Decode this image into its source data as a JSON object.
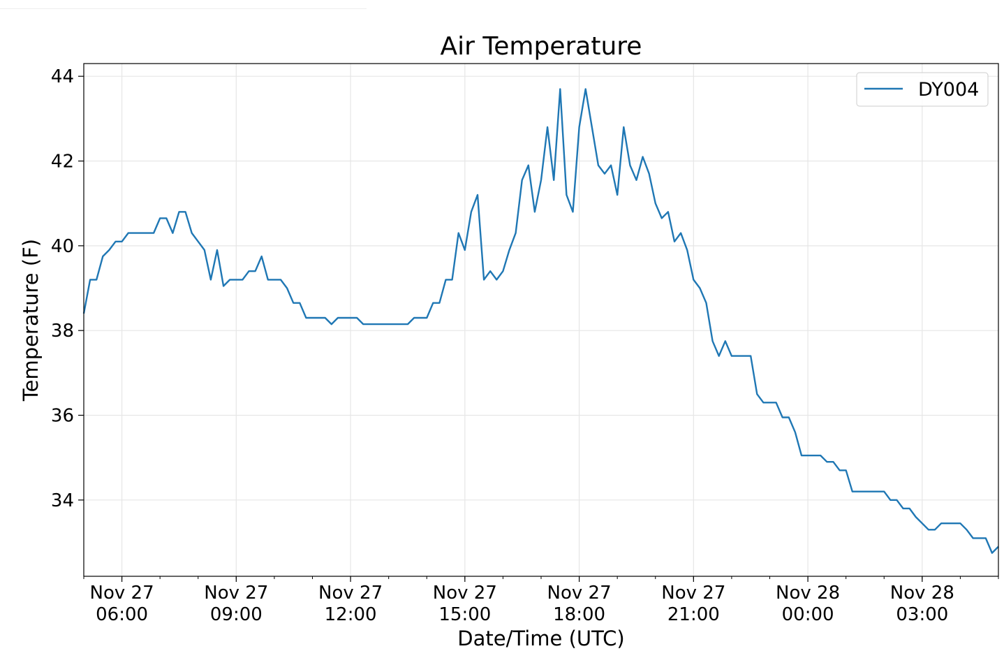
{
  "chart_data": {
    "type": "line",
    "title": "Air Temperature",
    "xlabel": "Date/Time (UTC)",
    "ylabel": "Temperature (F)",
    "ylim": [
      32.2,
      44.3
    ],
    "xlim": [
      "2019-11-27T05:00",
      "2019-11-28T05:00"
    ],
    "yticks": [
      34,
      36,
      38,
      40,
      42,
      44
    ],
    "xticks": [
      {
        "t": "2019-11-27T06:00",
        "line1": "Nov 27",
        "line2": "06:00"
      },
      {
        "t": "2019-11-27T09:00",
        "line1": "Nov 27",
        "line2": "09:00"
      },
      {
        "t": "2019-11-27T12:00",
        "line1": "Nov 27",
        "line2": "12:00"
      },
      {
        "t": "2019-11-27T15:00",
        "line1": "Nov 27",
        "line2": "15:00"
      },
      {
        "t": "2019-11-27T18:00",
        "line1": "Nov 27",
        "line2": "18:00"
      },
      {
        "t": "2019-11-27T21:00",
        "line1": "Nov 27",
        "line2": "21:00"
      },
      {
        "t": "2019-11-28T00:00",
        "line1": "Nov 28",
        "line2": "00:00"
      },
      {
        "t": "2019-11-28T03:00",
        "line1": "Nov 28",
        "line2": "03:00"
      }
    ],
    "grid": true,
    "legend_position": "top-right",
    "series": [
      {
        "name": "DY004",
        "color": "#1f77b4",
        "x": [
          "2019-11-27T05:00",
          "2019-11-27T05:10",
          "2019-11-27T05:20",
          "2019-11-27T05:30",
          "2019-11-27T05:40",
          "2019-11-27T05:50",
          "2019-11-27T06:00",
          "2019-11-27T06:10",
          "2019-11-27T06:20",
          "2019-11-27T06:30",
          "2019-11-27T06:40",
          "2019-11-27T06:50",
          "2019-11-27T07:00",
          "2019-11-27T07:10",
          "2019-11-27T07:20",
          "2019-11-27T07:30",
          "2019-11-27T07:40",
          "2019-11-27T07:50",
          "2019-11-27T08:00",
          "2019-11-27T08:10",
          "2019-11-27T08:20",
          "2019-11-27T08:30",
          "2019-11-27T08:40",
          "2019-11-27T08:50",
          "2019-11-27T09:00",
          "2019-11-27T09:10",
          "2019-11-27T09:20",
          "2019-11-27T09:30",
          "2019-11-27T09:40",
          "2019-11-27T09:50",
          "2019-11-27T10:00",
          "2019-11-27T10:10",
          "2019-11-27T10:20",
          "2019-11-27T10:30",
          "2019-11-27T10:40",
          "2019-11-27T10:50",
          "2019-11-27T11:00",
          "2019-11-27T11:10",
          "2019-11-27T11:20",
          "2019-11-27T11:30",
          "2019-11-27T11:40",
          "2019-11-27T11:50",
          "2019-11-27T12:00",
          "2019-11-27T12:10",
          "2019-11-27T12:20",
          "2019-11-27T12:30",
          "2019-11-27T12:40",
          "2019-11-27T12:50",
          "2019-11-27T13:00",
          "2019-11-27T13:10",
          "2019-11-27T13:20",
          "2019-11-27T13:30",
          "2019-11-27T13:40",
          "2019-11-27T13:50",
          "2019-11-27T14:00",
          "2019-11-27T14:10",
          "2019-11-27T14:20",
          "2019-11-27T14:30",
          "2019-11-27T14:40",
          "2019-11-27T14:50",
          "2019-11-27T15:00",
          "2019-11-27T15:10",
          "2019-11-27T15:20",
          "2019-11-27T15:30",
          "2019-11-27T15:40",
          "2019-11-27T15:50",
          "2019-11-27T16:00",
          "2019-11-27T16:10",
          "2019-11-27T16:20",
          "2019-11-27T16:30",
          "2019-11-27T16:40",
          "2019-11-27T16:50",
          "2019-11-27T17:00",
          "2019-11-27T17:10",
          "2019-11-27T17:20",
          "2019-11-27T17:30",
          "2019-11-27T17:40",
          "2019-11-27T17:50",
          "2019-11-27T18:00",
          "2019-11-27T18:10",
          "2019-11-27T18:20",
          "2019-11-27T18:30",
          "2019-11-27T18:40",
          "2019-11-27T18:50",
          "2019-11-27T19:00",
          "2019-11-27T19:10",
          "2019-11-27T19:20",
          "2019-11-27T19:30",
          "2019-11-27T19:40",
          "2019-11-27T19:50",
          "2019-11-27T20:00",
          "2019-11-27T20:10",
          "2019-11-27T20:20",
          "2019-11-27T20:30",
          "2019-11-27T20:40",
          "2019-11-27T20:50",
          "2019-11-27T21:00",
          "2019-11-27T21:10",
          "2019-11-27T21:20",
          "2019-11-27T21:30",
          "2019-11-27T21:40",
          "2019-11-27T21:50",
          "2019-11-27T22:00",
          "2019-11-27T22:10",
          "2019-11-27T22:20",
          "2019-11-27T22:30",
          "2019-11-27T22:40",
          "2019-11-27T22:50",
          "2019-11-27T23:00",
          "2019-11-27T23:10",
          "2019-11-27T23:20",
          "2019-11-27T23:30",
          "2019-11-27T23:40",
          "2019-11-27T23:50",
          "2019-11-28T00:00",
          "2019-11-28T00:10",
          "2019-11-28T00:20",
          "2019-11-28T00:30",
          "2019-11-28T00:40",
          "2019-11-28T00:50",
          "2019-11-28T01:00",
          "2019-11-28T01:10",
          "2019-11-28T01:20",
          "2019-11-28T01:30",
          "2019-11-28T01:40",
          "2019-11-28T01:50",
          "2019-11-28T02:00",
          "2019-11-28T02:10",
          "2019-11-28T02:20",
          "2019-11-28T02:30",
          "2019-11-28T02:40",
          "2019-11-28T02:50",
          "2019-11-28T03:00",
          "2019-11-28T03:10",
          "2019-11-28T03:20",
          "2019-11-28T03:30",
          "2019-11-28T03:40",
          "2019-11-28T03:50",
          "2019-11-28T04:00",
          "2019-11-28T04:10",
          "2019-11-28T04:20",
          "2019-11-28T04:30",
          "2019-11-28T04:40",
          "2019-11-28T04:50",
          "2019-11-28T05:00"
        ],
        "y": [
          38.4,
          39.2,
          39.2,
          39.75,
          39.9,
          40.1,
          40.1,
          40.3,
          40.3,
          40.3,
          40.3,
          40.3,
          40.65,
          40.65,
          40.3,
          40.8,
          40.8,
          40.3,
          40.1,
          39.9,
          39.2,
          39.9,
          39.05,
          39.2,
          39.2,
          39.2,
          39.4,
          39.4,
          39.75,
          39.2,
          39.2,
          39.2,
          39.0,
          38.65,
          38.65,
          38.3,
          38.3,
          38.3,
          38.3,
          38.15,
          38.3,
          38.3,
          38.3,
          38.3,
          38.15,
          38.15,
          38.15,
          38.15,
          38.15,
          38.15,
          38.15,
          38.15,
          38.3,
          38.3,
          38.3,
          38.65,
          38.65,
          39.2,
          39.2,
          40.3,
          39.9,
          40.8,
          41.2,
          39.2,
          39.4,
          39.2,
          39.4,
          39.9,
          40.3,
          41.55,
          41.9,
          40.8,
          41.55,
          42.8,
          41.55,
          43.7,
          41.2,
          40.8,
          42.8,
          43.7,
          42.8,
          41.9,
          41.7,
          41.9,
          41.2,
          42.8,
          41.9,
          41.55,
          42.1,
          41.7,
          41.0,
          40.65,
          40.8,
          40.1,
          40.3,
          39.9,
          39.2,
          39.0,
          38.65,
          37.75,
          37.4,
          37.75,
          37.4,
          37.4,
          37.4,
          37.4,
          36.5,
          36.3,
          36.3,
          36.3,
          35.95,
          35.95,
          35.6,
          35.05,
          35.05,
          35.05,
          35.05,
          34.9,
          34.9,
          34.7,
          34.7,
          34.2,
          34.2,
          34.2,
          34.2,
          34.2,
          34.2,
          34.0,
          34.0,
          33.8,
          33.8,
          33.6,
          33.45,
          33.3,
          33.3,
          33.45,
          33.45,
          33.45,
          33.45,
          33.3,
          33.1,
          33.1,
          33.1,
          32.75,
          32.9
        ]
      }
    ]
  }
}
